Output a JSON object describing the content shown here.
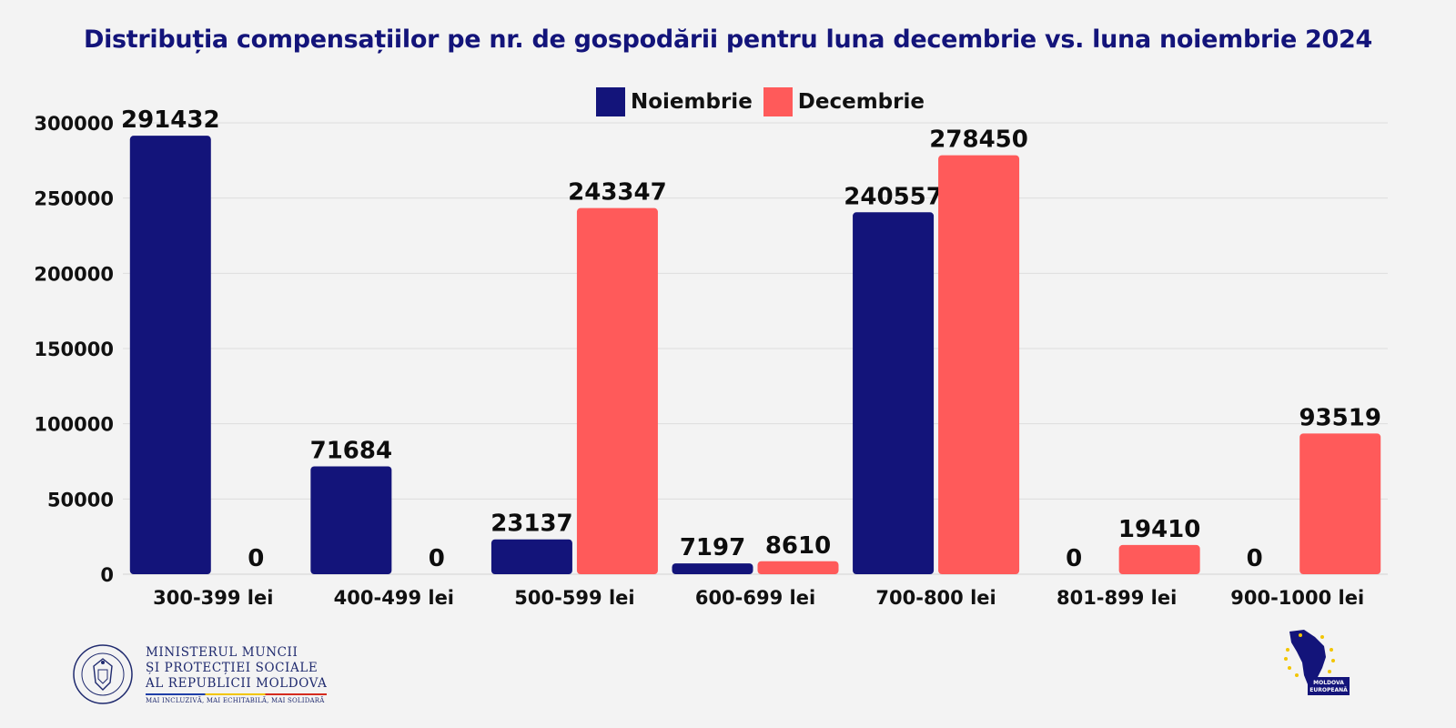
{
  "title": "Distribuția compensațiilor pe nr. de gospodării pentru luna decembrie vs. luna noiembrie 2024",
  "legend": [
    "Noiembrie",
    "Decembrie"
  ],
  "colors": {
    "title": "#13147a",
    "noiembrie": "#13147a",
    "decembrie": "#ff5a5a",
    "grid": "#dedede",
    "axis_text": "#111111"
  },
  "chart_data": {
    "type": "bar",
    "title": "Distribuția compensațiilor pe nr. de gospodării pentru luna decembrie vs. luna noiembrie 2024",
    "xlabel": "",
    "ylabel": "",
    "categories": [
      "300-399 lei",
      "400-499 lei",
      "500-599 lei",
      "600-699 lei",
      "700-800 lei",
      "801-899 lei",
      "900-1000 lei"
    ],
    "series": [
      {
        "name": "Noiembrie",
        "values": [
          291432,
          71684,
          23137,
          7197,
          240557,
          0,
          0
        ]
      },
      {
        "name": "Decembrie",
        "values": [
          0,
          0,
          243347,
          8610,
          278450,
          19410,
          93519
        ]
      }
    ],
    "ylim": [
      0,
      300000
    ],
    "yticks": [
      0,
      50000,
      100000,
      150000,
      200000,
      250000,
      300000
    ],
    "grid": true,
    "legend_position": "top-center",
    "data_labels": true
  },
  "footer": {
    "ministry_lines": [
      "MINISTERUL MUNCII",
      "ȘI PROTECȚIEI SOCIALE",
      "AL REPUBLICII MOLDOVA"
    ],
    "ministry_motto": "MAI INCLUZIVĂ, MAI ECHITABILĂ, MAI SOLIDARĂ",
    "seal_icon": "state-emblem-seal-icon",
    "eu_logo_icon": "moldova-europeana-map-icon",
    "eu_logo_text": [
      "MOLDOVA",
      "EUROPEANĂ"
    ]
  }
}
